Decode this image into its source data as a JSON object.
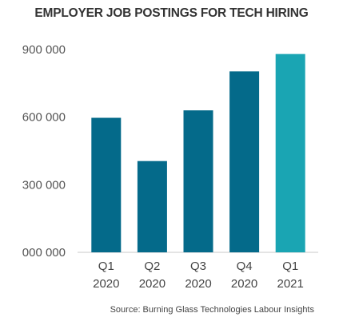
{
  "chart_data": {
    "type": "bar",
    "title": "EMPLOYER JOB POSTINGS FOR TECH HIRING",
    "xlabel": "",
    "ylabel": "",
    "categories": [
      [
        "Q1",
        "2020"
      ],
      [
        "Q2",
        "2020"
      ],
      [
        "Q3",
        "2020"
      ],
      [
        "Q4",
        "2020"
      ],
      [
        "Q1",
        "2021"
      ]
    ],
    "values": [
      597000,
      405000,
      630000,
      803000,
      880000
    ],
    "ylim": [
      0,
      900000
    ],
    "yticks": [
      0,
      300000,
      600000,
      900000
    ],
    "ytick_labels": [
      "000 000",
      "300 000",
      "600 000",
      "900 000"
    ],
    "grid": false,
    "legend": "none",
    "colors": [
      "#046a8a",
      "#046a8a",
      "#046a8a",
      "#046a8a",
      "#1aa5b3"
    ]
  },
  "source": "Source: Burning Glass Technologies Labour Insights"
}
